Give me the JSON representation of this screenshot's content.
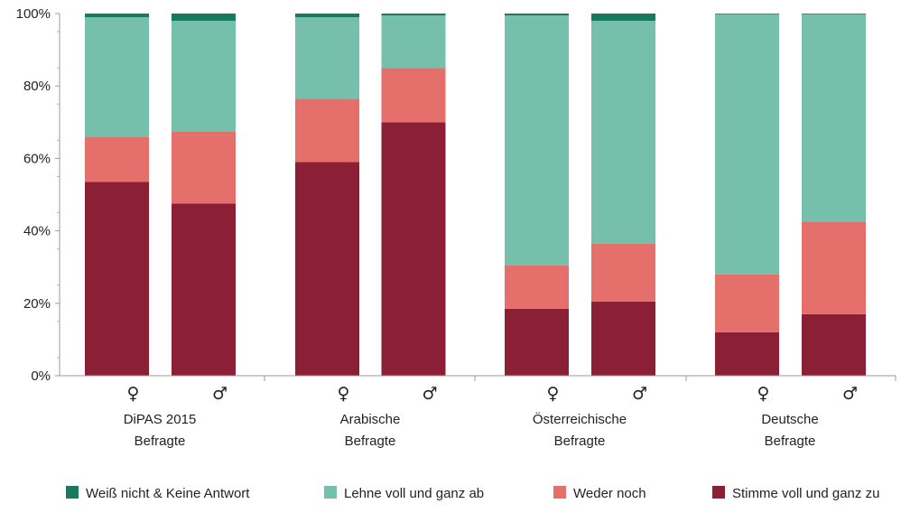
{
  "chart_data": {
    "type": "bar",
    "stacked": true,
    "ylim": [
      0,
      100
    ],
    "yticks": [
      "0%",
      "20%",
      "40%",
      "60%",
      "80%",
      "100%"
    ],
    "grid": false,
    "legend_position": "bottom",
    "groups": [
      {
        "label_lines": [
          "DiPAS 2015",
          "Befragte"
        ],
        "bars": [
          "♀",
          "♂"
        ]
      },
      {
        "label_lines": [
          "Arabische",
          "Befragte"
        ],
        "bars": [
          "♀",
          "♂"
        ]
      },
      {
        "label_lines": [
          "Österreichische",
          "Befragte"
        ],
        "bars": [
          "♀",
          "♂"
        ]
      },
      {
        "label_lines": [
          "Deutsche",
          "Befragte"
        ],
        "bars": [
          "♀",
          "♂"
        ]
      }
    ],
    "categories": [
      "DiPAS 2015 Befragte ♀",
      "DiPAS 2015 Befragte ♂",
      "Arabische Befragte ♀",
      "Arabische Befragte ♂",
      "Österreichische Befragte ♀",
      "Österreichische Befragte ♂",
      "Deutsche Befragte ♀",
      "Deutsche Befragte ♂"
    ],
    "series": [
      {
        "name": "Stimme voll und ganz zu",
        "color": "#8b1f35",
        "values": [
          53.5,
          47.5,
          59,
          70,
          18.5,
          20.5,
          12,
          17
        ]
      },
      {
        "name": "Weder noch",
        "color": "#e5706b",
        "values": [
          12.5,
          20,
          17.5,
          15,
          12,
          16,
          16,
          25.5
        ]
      },
      {
        "name": "Lehne voll und ganz ab",
        "color": "#76bfab",
        "values": [
          33,
          30.5,
          22.5,
          14.5,
          69,
          61.5,
          71.8,
          57.3
        ]
      },
      {
        "name": "Weiß nicht & Keine Antwort",
        "color": "#157a60",
        "values": [
          1,
          2,
          1,
          0.5,
          0.5,
          2,
          0.2,
          0.2
        ]
      }
    ],
    "legend_order": [
      "Weiß nicht & Keine Antwort",
      "Lehne voll und ganz ab",
      "Weder noch",
      "Stimme voll und ganz zu"
    ]
  }
}
